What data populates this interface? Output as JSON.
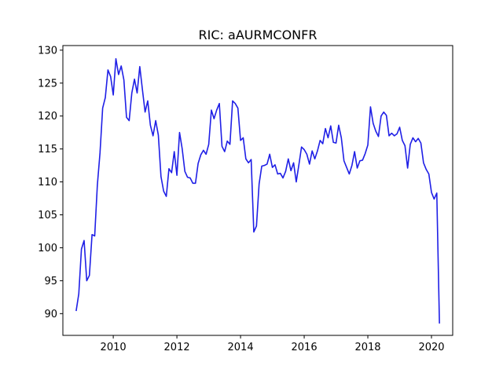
{
  "chart_data": {
    "type": "line",
    "title": "RIC: aAURMCONFR",
    "xlabel": "",
    "ylabel": "",
    "x_type": "date",
    "xlim": [
      "2008-06-01",
      "2020-09-01"
    ],
    "ylim": [
      86.7,
      130.7
    ],
    "x_ticks": [
      "2010",
      "2012",
      "2014",
      "2016",
      "2018",
      "2020"
    ],
    "y_ticks": [
      90,
      95,
      100,
      105,
      110,
      115,
      120,
      125,
      130
    ],
    "grid": false,
    "series": [
      {
        "color": "#1f1fe6",
        "x": [
          "2008-11",
          "2008-12",
          "2009-01",
          "2009-02",
          "2009-03",
          "2009-04",
          "2009-05",
          "2009-06",
          "2009-07",
          "2009-08",
          "2009-09",
          "2009-10",
          "2009-11",
          "2009-12",
          "2010-01",
          "2010-02",
          "2010-03",
          "2010-04",
          "2010-05",
          "2010-06",
          "2010-07",
          "2010-08",
          "2010-09",
          "2010-10",
          "2010-11",
          "2010-12",
          "2011-01",
          "2011-02",
          "2011-03",
          "2011-04",
          "2011-05",
          "2011-06",
          "2011-07",
          "2011-08",
          "2011-09",
          "2011-10",
          "2011-11",
          "2011-12",
          "2012-01",
          "2012-02",
          "2012-03",
          "2012-04",
          "2012-05",
          "2012-06",
          "2012-07",
          "2012-08",
          "2012-09",
          "2012-10",
          "2012-11",
          "2012-12",
          "2013-01",
          "2013-02",
          "2013-03",
          "2013-04",
          "2013-05",
          "2013-06",
          "2013-07",
          "2013-08",
          "2013-09",
          "2013-10",
          "2013-11",
          "2013-12",
          "2014-01",
          "2014-02",
          "2014-03",
          "2014-04",
          "2014-05",
          "2014-06",
          "2014-07",
          "2014-08",
          "2014-09",
          "2014-10",
          "2014-11",
          "2014-12",
          "2015-01",
          "2015-02",
          "2015-03",
          "2015-04",
          "2015-05",
          "2015-06",
          "2015-07",
          "2015-08",
          "2015-09",
          "2015-10",
          "2015-11",
          "2015-12",
          "2016-01",
          "2016-02",
          "2016-03",
          "2016-04",
          "2016-05",
          "2016-06",
          "2016-07",
          "2016-08",
          "2016-09",
          "2016-10",
          "2016-11",
          "2016-12",
          "2017-01",
          "2017-02",
          "2017-03",
          "2017-04",
          "2017-05",
          "2017-06",
          "2017-07",
          "2017-08",
          "2017-09",
          "2017-10",
          "2017-11",
          "2017-12",
          "2018-01",
          "2018-02",
          "2018-03",
          "2018-04",
          "2018-05",
          "2018-06",
          "2018-07",
          "2018-08",
          "2018-09",
          "2018-10",
          "2018-11",
          "2018-12",
          "2019-01",
          "2019-02",
          "2019-03",
          "2019-04",
          "2019-05",
          "2019-06",
          "2019-07",
          "2019-08",
          "2019-09",
          "2019-10",
          "2019-11",
          "2019-12",
          "2020-01",
          "2020-02",
          "2020-03",
          "2020-04"
        ],
        "values": [
          90.4,
          93.0,
          99.8,
          101.1,
          95.0,
          95.8,
          102.0,
          101.8,
          109.5,
          114.4,
          121.2,
          122.8,
          127.0,
          126.0,
          123.2,
          128.7,
          126.3,
          127.6,
          125.5,
          119.8,
          119.3,
          123.5,
          125.6,
          123.5,
          127.5,
          124.0,
          120.6,
          122.3,
          118.6,
          117.0,
          119.3,
          117.1,
          110.8,
          108.6,
          107.8,
          112.0,
          111.4,
          114.6,
          111.0,
          117.5,
          115.0,
          111.6,
          110.7,
          110.6,
          109.8,
          109.8,
          112.8,
          114.1,
          114.8,
          114.2,
          115.7,
          120.9,
          119.6,
          120.9,
          121.9,
          115.4,
          114.6,
          116.2,
          115.7,
          122.3,
          121.9,
          121.2,
          116.3,
          116.7,
          113.5,
          112.9,
          113.4,
          102.4,
          103.3,
          109.7,
          112.4,
          112.5,
          112.7,
          114.2,
          112.2,
          112.6,
          111.2,
          111.3,
          110.6,
          111.6,
          113.5,
          111.7,
          112.9,
          110.0,
          112.6,
          115.3,
          114.9,
          114.2,
          112.7,
          114.7,
          113.5,
          114.7,
          116.3,
          115.8,
          118.1,
          116.7,
          118.5,
          116.0,
          115.9,
          118.6,
          116.7,
          113.2,
          112.2,
          111.2,
          112.5,
          114.6,
          112.1,
          113.2,
          113.3,
          114.3,
          115.6,
          121.4,
          118.9,
          117.7,
          116.9,
          120.0,
          120.6,
          120.1,
          117.0,
          117.4,
          117.0,
          117.3,
          118.3,
          116.3,
          115.5,
          112.1,
          115.7,
          116.7,
          116.1,
          116.6,
          115.9,
          112.9,
          111.9,
          111.2,
          108.4,
          107.4,
          108.3,
          88.5
        ]
      }
    ]
  }
}
